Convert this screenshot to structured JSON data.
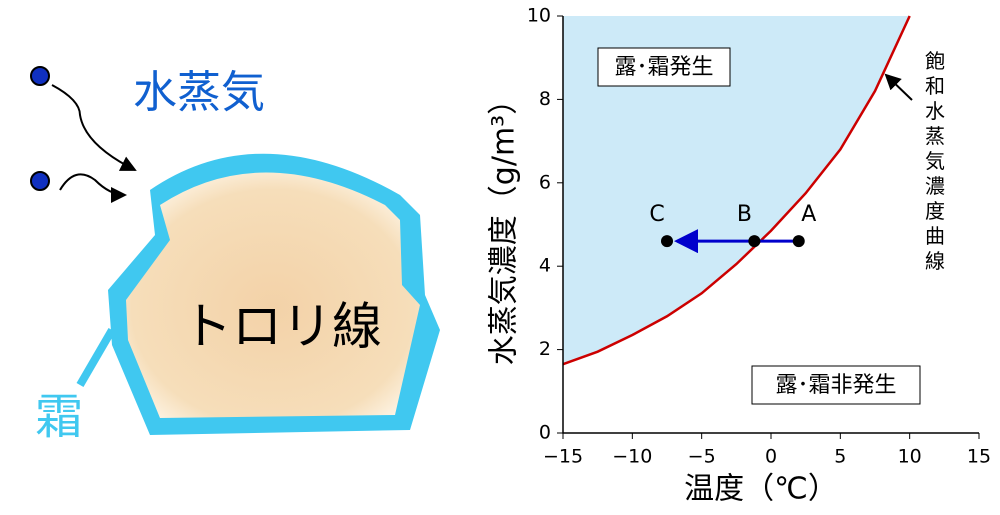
{
  "diagram": {
    "vapor_label": "水蒸気",
    "wire_label": "トロリ線",
    "frost_label": "霜"
  },
  "chart_data": {
    "type": "line",
    "xlabel": "温度（℃）",
    "ylabel": "水蒸気濃度（g/m³）",
    "x": [
      -15,
      -12.5,
      -10,
      -7.5,
      -5,
      -2.5,
      0,
      2.5,
      5,
      7.5,
      10
    ],
    "values": [
      1.65,
      1.95,
      2.35,
      2.8,
      3.35,
      4.05,
      4.85,
      5.75,
      6.8,
      8.2,
      10.0
    ],
    "color": "#cc0000",
    "fill": "#cdeaf8",
    "curve_label": "飽和水蒸気濃度曲線",
    "region_labels": [
      "露･霜発生",
      "露･霜非発生"
    ],
    "points": [
      {
        "label": "A",
        "x": 2,
        "y": 4.6
      },
      {
        "label": "B",
        "x": -1.2,
        "y": 4.6
      },
      {
        "label": "C",
        "x": -7.5,
        "y": 4.6
      }
    ],
    "point_color": "#000000",
    "arrow_color": "#0000cc",
    "xlim": [
      -15,
      15
    ],
    "xticks": [
      {
        "value": -15,
        "label": "−15"
      },
      {
        "value": -10,
        "label": "−10"
      },
      {
        "value": -5,
        "label": "−5"
      },
      0,
      5,
      10,
      15
    ],
    "ylim": [
      0,
      10
    ],
    "yticks": [
      0,
      2,
      4,
      6,
      8,
      10
    ]
  }
}
